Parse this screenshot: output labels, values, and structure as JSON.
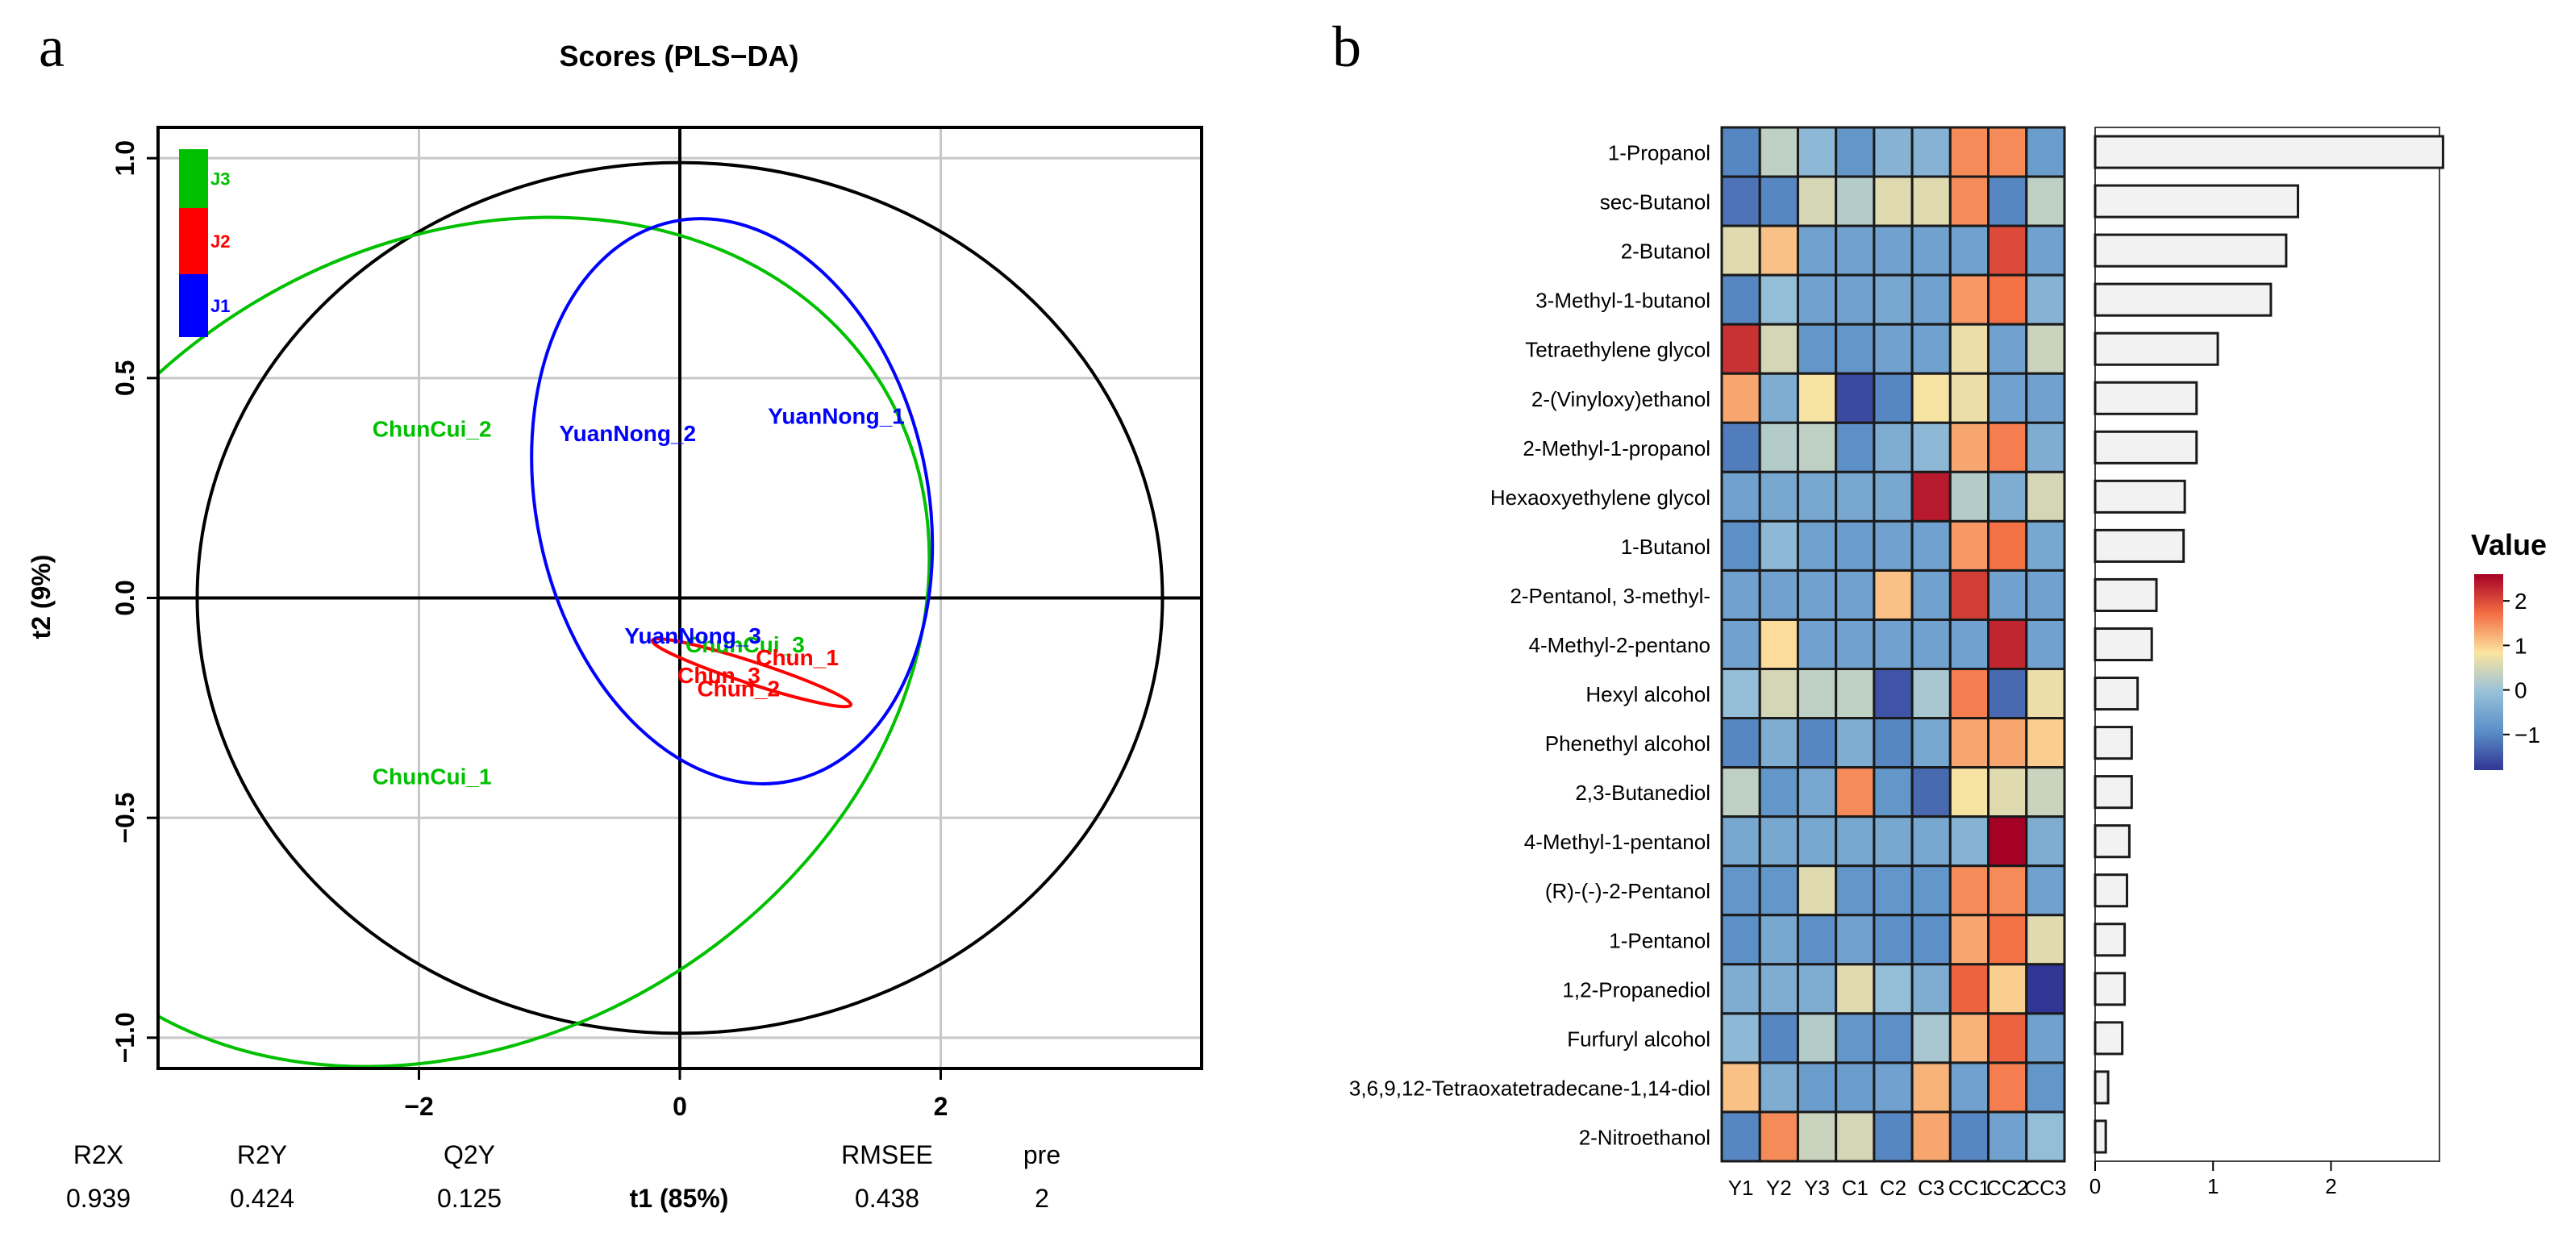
{
  "panel_a": {
    "letter": "a",
    "legend_labels": [
      "J3",
      "J2",
      "J1"
    ],
    "legend_colors": [
      "#00c000",
      "#ff0000",
      "#0000ff"
    ],
    "stats": {
      "headers": [
        "R2X",
        "R2Y",
        "Q2Y",
        "t1 (85%)",
        "RMSEE",
        "pre"
      ],
      "values": [
        "0.939",
        "0.424",
        "0.125",
        "",
        "0.438",
        "2"
      ]
    }
  },
  "panel_b": {
    "letter": "b",
    "colorbar_title": "Value",
    "colorbar_ticks": [
      "2",
      "1",
      "0",
      "−1"
    ]
  },
  "chart_data": [
    {
      "type": "scatter",
      "title": "Scores (PLS−DA)",
      "xlabel": "t1 (85%)",
      "ylabel": "t2 (9%)",
      "xlim": [
        -4.0,
        4.0
      ],
      "ylim": [
        -1.07,
        1.07
      ],
      "x_ticks": [
        -2,
        0,
        2
      ],
      "x_tick_labels": [
        "−2",
        "0",
        "2"
      ],
      "y_ticks": [
        1.0,
        0.5,
        0.0,
        -0.5,
        -1.0
      ],
      "y_tick_labels": [
        "1.0",
        "0.5",
        "0.0",
        "−0.5",
        "−1.0"
      ],
      "grid": true,
      "points": [
        {
          "label": "ChunCui_2",
          "x": -1.9,
          "y": 0.38,
          "group": "J3",
          "color": "#00c000"
        },
        {
          "label": "ChunCui_1",
          "x": -1.9,
          "y": -0.41,
          "group": "J3",
          "color": "#00c000"
        },
        {
          "label": "ChunCui_3",
          "x": 0.5,
          "y": -0.11,
          "group": "J3",
          "color": "#00c000"
        },
        {
          "label": "YuanNong_2",
          "x": -0.4,
          "y": 0.37,
          "group": "J1",
          "color": "#0000ff"
        },
        {
          "label": "YuanNong_1",
          "x": 1.2,
          "y": 0.41,
          "group": "J1",
          "color": "#0000ff"
        },
        {
          "label": "YuanNong_3",
          "x": 0.1,
          "y": -0.09,
          "group": "J1",
          "color": "#0000ff"
        },
        {
          "label": "Chun_1",
          "x": 0.9,
          "y": -0.14,
          "group": "J2",
          "color": "#ff0000"
        },
        {
          "label": "Chun_2",
          "x": 0.45,
          "y": -0.21,
          "group": "J2",
          "color": "#ff0000"
        },
        {
          "label": "Chun_3",
          "x": 0.3,
          "y": -0.18,
          "group": "J2",
          "color": "#ff0000"
        }
      ],
      "ellipses": [
        {
          "name": "Hotelling T2",
          "color": "#000000",
          "cx": 0.0,
          "cy": 0.0,
          "rx": 3.7,
          "ry": 0.99,
          "angle": 0
        },
        {
          "name": "J3",
          "color": "#00c000",
          "cx": -1.7,
          "cy": -0.1,
          "rx": 3.8,
          "ry": 0.9,
          "angle": -31
        },
        {
          "name": "J1",
          "color": "#0000ff",
          "cx": 0.4,
          "cy": 0.22,
          "rx": 1.5,
          "ry": 0.65,
          "angle": -12
        },
        {
          "name": "J2",
          "color": "#ff0000",
          "cx": 0.55,
          "cy": -0.17,
          "rx": 0.8,
          "ry": 0.025,
          "angle": 18
        }
      ]
    },
    {
      "type": "heatmap",
      "columns": [
        "Y1",
        "Y2",
        "Y3",
        "C1",
        "C2",
        "C3",
        "CC1",
        "CC2",
        "CC3"
      ],
      "rows": [
        "1-Propanol",
        "sec-Butanol",
        "2-Butanol",
        "3-Methyl-1-butanol",
        "Tetraethylene glycol",
        "2-(Vinyloxy)ethanol",
        "2-Methyl-1-propanol",
        "Hexaoxyethylene glycol",
        "1-Butanol",
        "2-Pentanol, 3-methyl-",
        "4-Methyl-2-pentano",
        "Hexyl alcohol",
        "Phenethyl alcohol",
        "2,3-Butanediol",
        "4-Methyl-1-pentanol",
        "(R)-(-)-2-Pentanol",
        "1-Pentanol",
        "1,2-Propanediol",
        "Furfuryl alcohol",
        "3,6,9,12-Tetraoxatetradecane-1,14-diol",
        "2-Nitroethanol"
      ],
      "values": [
        [
          -1.0,
          0.3,
          -0.2,
          -0.8,
          -0.3,
          -0.3,
          1.5,
          1.5,
          -0.7
        ],
        [
          -1.2,
          -1.0,
          0.5,
          0.2,
          0.6,
          0.6,
          1.5,
          -1.0,
          0.3
        ],
        [
          0.6,
          1.1,
          -0.6,
          -0.6,
          -0.6,
          -0.6,
          -0.6,
          2.0,
          -0.6
        ],
        [
          -1.0,
          -0.1,
          -0.6,
          -0.6,
          -0.5,
          -0.6,
          1.4,
          1.7,
          -0.3
        ],
        [
          2.2,
          0.5,
          -0.8,
          -0.8,
          -0.6,
          -0.6,
          0.7,
          -0.6,
          0.4
        ],
        [
          1.3,
          -0.4,
          0.8,
          -1.6,
          -1.0,
          0.8,
          0.7,
          -0.6,
          -0.6
        ],
        [
          -1.1,
          0.2,
          0.3,
          -0.9,
          -0.4,
          -0.2,
          1.3,
          1.6,
          -0.4
        ],
        [
          -0.6,
          -0.5,
          -0.5,
          -0.5,
          -0.5,
          2.4,
          0.2,
          -0.4,
          0.5
        ],
        [
          -0.9,
          -0.2,
          -0.6,
          -0.7,
          -0.6,
          -0.6,
          1.4,
          1.7,
          -0.5
        ],
        [
          -0.6,
          -0.6,
          -0.6,
          -0.6,
          1.1,
          -0.6,
          2.1,
          -0.6,
          -0.6
        ],
        [
          -0.6,
          0.9,
          -0.6,
          -0.6,
          -0.6,
          -0.6,
          -0.6,
          2.3,
          -0.6
        ],
        [
          -0.1,
          0.5,
          0.3,
          0.3,
          -1.5,
          0.1,
          1.6,
          -1.3,
          0.7
        ],
        [
          -1.0,
          -0.4,
          -1.0,
          -0.4,
          -1.0,
          -0.5,
          1.3,
          1.3,
          1.0
        ],
        [
          0.3,
          -0.8,
          -0.5,
          1.5,
          -0.8,
          -1.3,
          0.8,
          0.6,
          0.4
        ],
        [
          -0.5,
          -0.5,
          -0.5,
          -0.5,
          -0.5,
          -0.5,
          -0.3,
          2.6,
          -0.4
        ],
        [
          -0.8,
          -0.8,
          0.6,
          -0.8,
          -0.8,
          -0.8,
          1.5,
          1.5,
          -0.6
        ],
        [
          -0.9,
          -0.5,
          -0.9,
          -0.6,
          -0.9,
          -0.9,
          1.3,
          1.7,
          0.6
        ],
        [
          -0.4,
          -0.4,
          -0.4,
          0.6,
          -0.1,
          -0.4,
          1.8,
          1.0,
          -1.9
        ],
        [
          -0.2,
          -1.0,
          0.2,
          -0.8,
          -0.9,
          0.1,
          1.2,
          1.8,
          -0.6
        ],
        [
          1.1,
          -0.4,
          -0.7,
          -0.7,
          -0.6,
          1.2,
          -0.6,
          1.6,
          -0.8
        ],
        [
          -1.0,
          1.5,
          0.4,
          0.5,
          -1.0,
          1.3,
          -1.0,
          -0.6,
          -0.1
        ]
      ],
      "color_range": [
        -1.8,
        2.6
      ],
      "color_stops": [
        "#313695",
        "#5b8fc7",
        "#98c1d9",
        "#fbe4a0",
        "#f46d43",
        "#a50026"
      ]
    },
    {
      "type": "bar",
      "orientation": "horizontal",
      "categories": [
        "1-Propanol",
        "sec-Butanol",
        "2-Butanol",
        "3-Methyl-1-butanol",
        "Tetraethylene glycol",
        "2-(Vinyloxy)ethanol",
        "2-Methyl-1-propanol",
        "Hexaoxyethylene glycol",
        "1-Butanol",
        "2-Pentanol, 3-methyl-",
        "4-Methyl-2-pentano",
        "Hexyl alcohol",
        "Phenethyl alcohol",
        "2,3-Butanediol",
        "4-Methyl-1-pentanol",
        "(R)-(-)-2-Pentanol",
        "1-Pentanol",
        "1,2-Propanediol",
        "Furfuryl alcohol",
        "3,6,9,12-Tetraoxatetradecane-1,14-diol",
        "2-Nitroethanol"
      ],
      "values": [
        2.95,
        1.72,
        1.62,
        1.49,
        1.04,
        0.86,
        0.86,
        0.76,
        0.75,
        0.52,
        0.48,
        0.36,
        0.31,
        0.31,
        0.29,
        0.27,
        0.25,
        0.25,
        0.23,
        0.11,
        0.09
      ],
      "x_ticks": [
        0,
        1,
        2
      ],
      "x_tick_labels": [
        "0",
        "1",
        "2"
      ],
      "xlim": [
        0,
        2.92
      ]
    }
  ]
}
